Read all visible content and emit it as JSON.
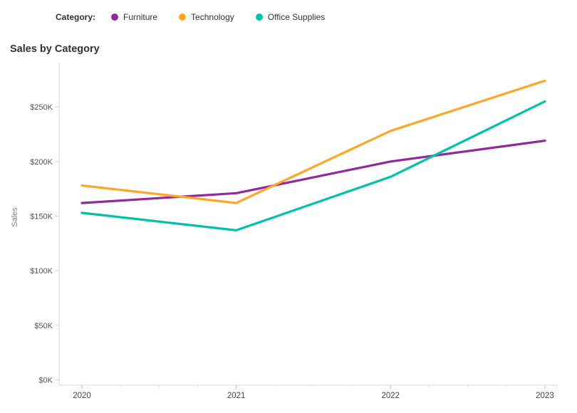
{
  "title": "Sales by Category",
  "legend": {
    "label": "Category:",
    "items": [
      {
        "name": "Furniture",
        "color": "#95279c"
      },
      {
        "name": "Technology",
        "color": "#ffa629"
      },
      {
        "name": "Office Supplies",
        "color": "#00c2a9"
      }
    ]
  },
  "y_axis": {
    "label": "Sales",
    "tick_labels": [
      "$0K",
      "$50K",
      "$100K",
      "$150K",
      "$200K",
      "$250K"
    ],
    "tick_values": [
      0,
      50000,
      100000,
      150000,
      200000,
      250000
    ]
  },
  "x_axis": {
    "tick_labels": [
      "2020",
      "2021",
      "2022",
      "2023"
    ]
  },
  "chart_data": {
    "type": "line",
    "title": "Sales by Category",
    "xlabel": "",
    "ylabel": "Sales",
    "categories": [
      "2020",
      "2021",
      "2022",
      "2023"
    ],
    "series": [
      {
        "name": "Furniture",
        "color": "#95279c",
        "values": [
          162000,
          171000,
          200000,
          219000
        ]
      },
      {
        "name": "Technology",
        "color": "#ffa629",
        "values": [
          178000,
          162000,
          228000,
          274000
        ]
      },
      {
        "name": "Office Supplies",
        "color": "#00c2a9",
        "values": [
          153000,
          137000,
          186000,
          255000
        ]
      }
    ],
    "ylim": [
      0,
      290000
    ],
    "y_tick_step": 50000,
    "grid": false,
    "legend_position": "top"
  },
  "colors": {
    "axis_line": "#d7d7d7",
    "major_tick": "#c3c3c3",
    "minor_tick": "#e6e6e6",
    "tick_label": "#555555",
    "axis_title": "#828282",
    "title_text": "#333333"
  }
}
